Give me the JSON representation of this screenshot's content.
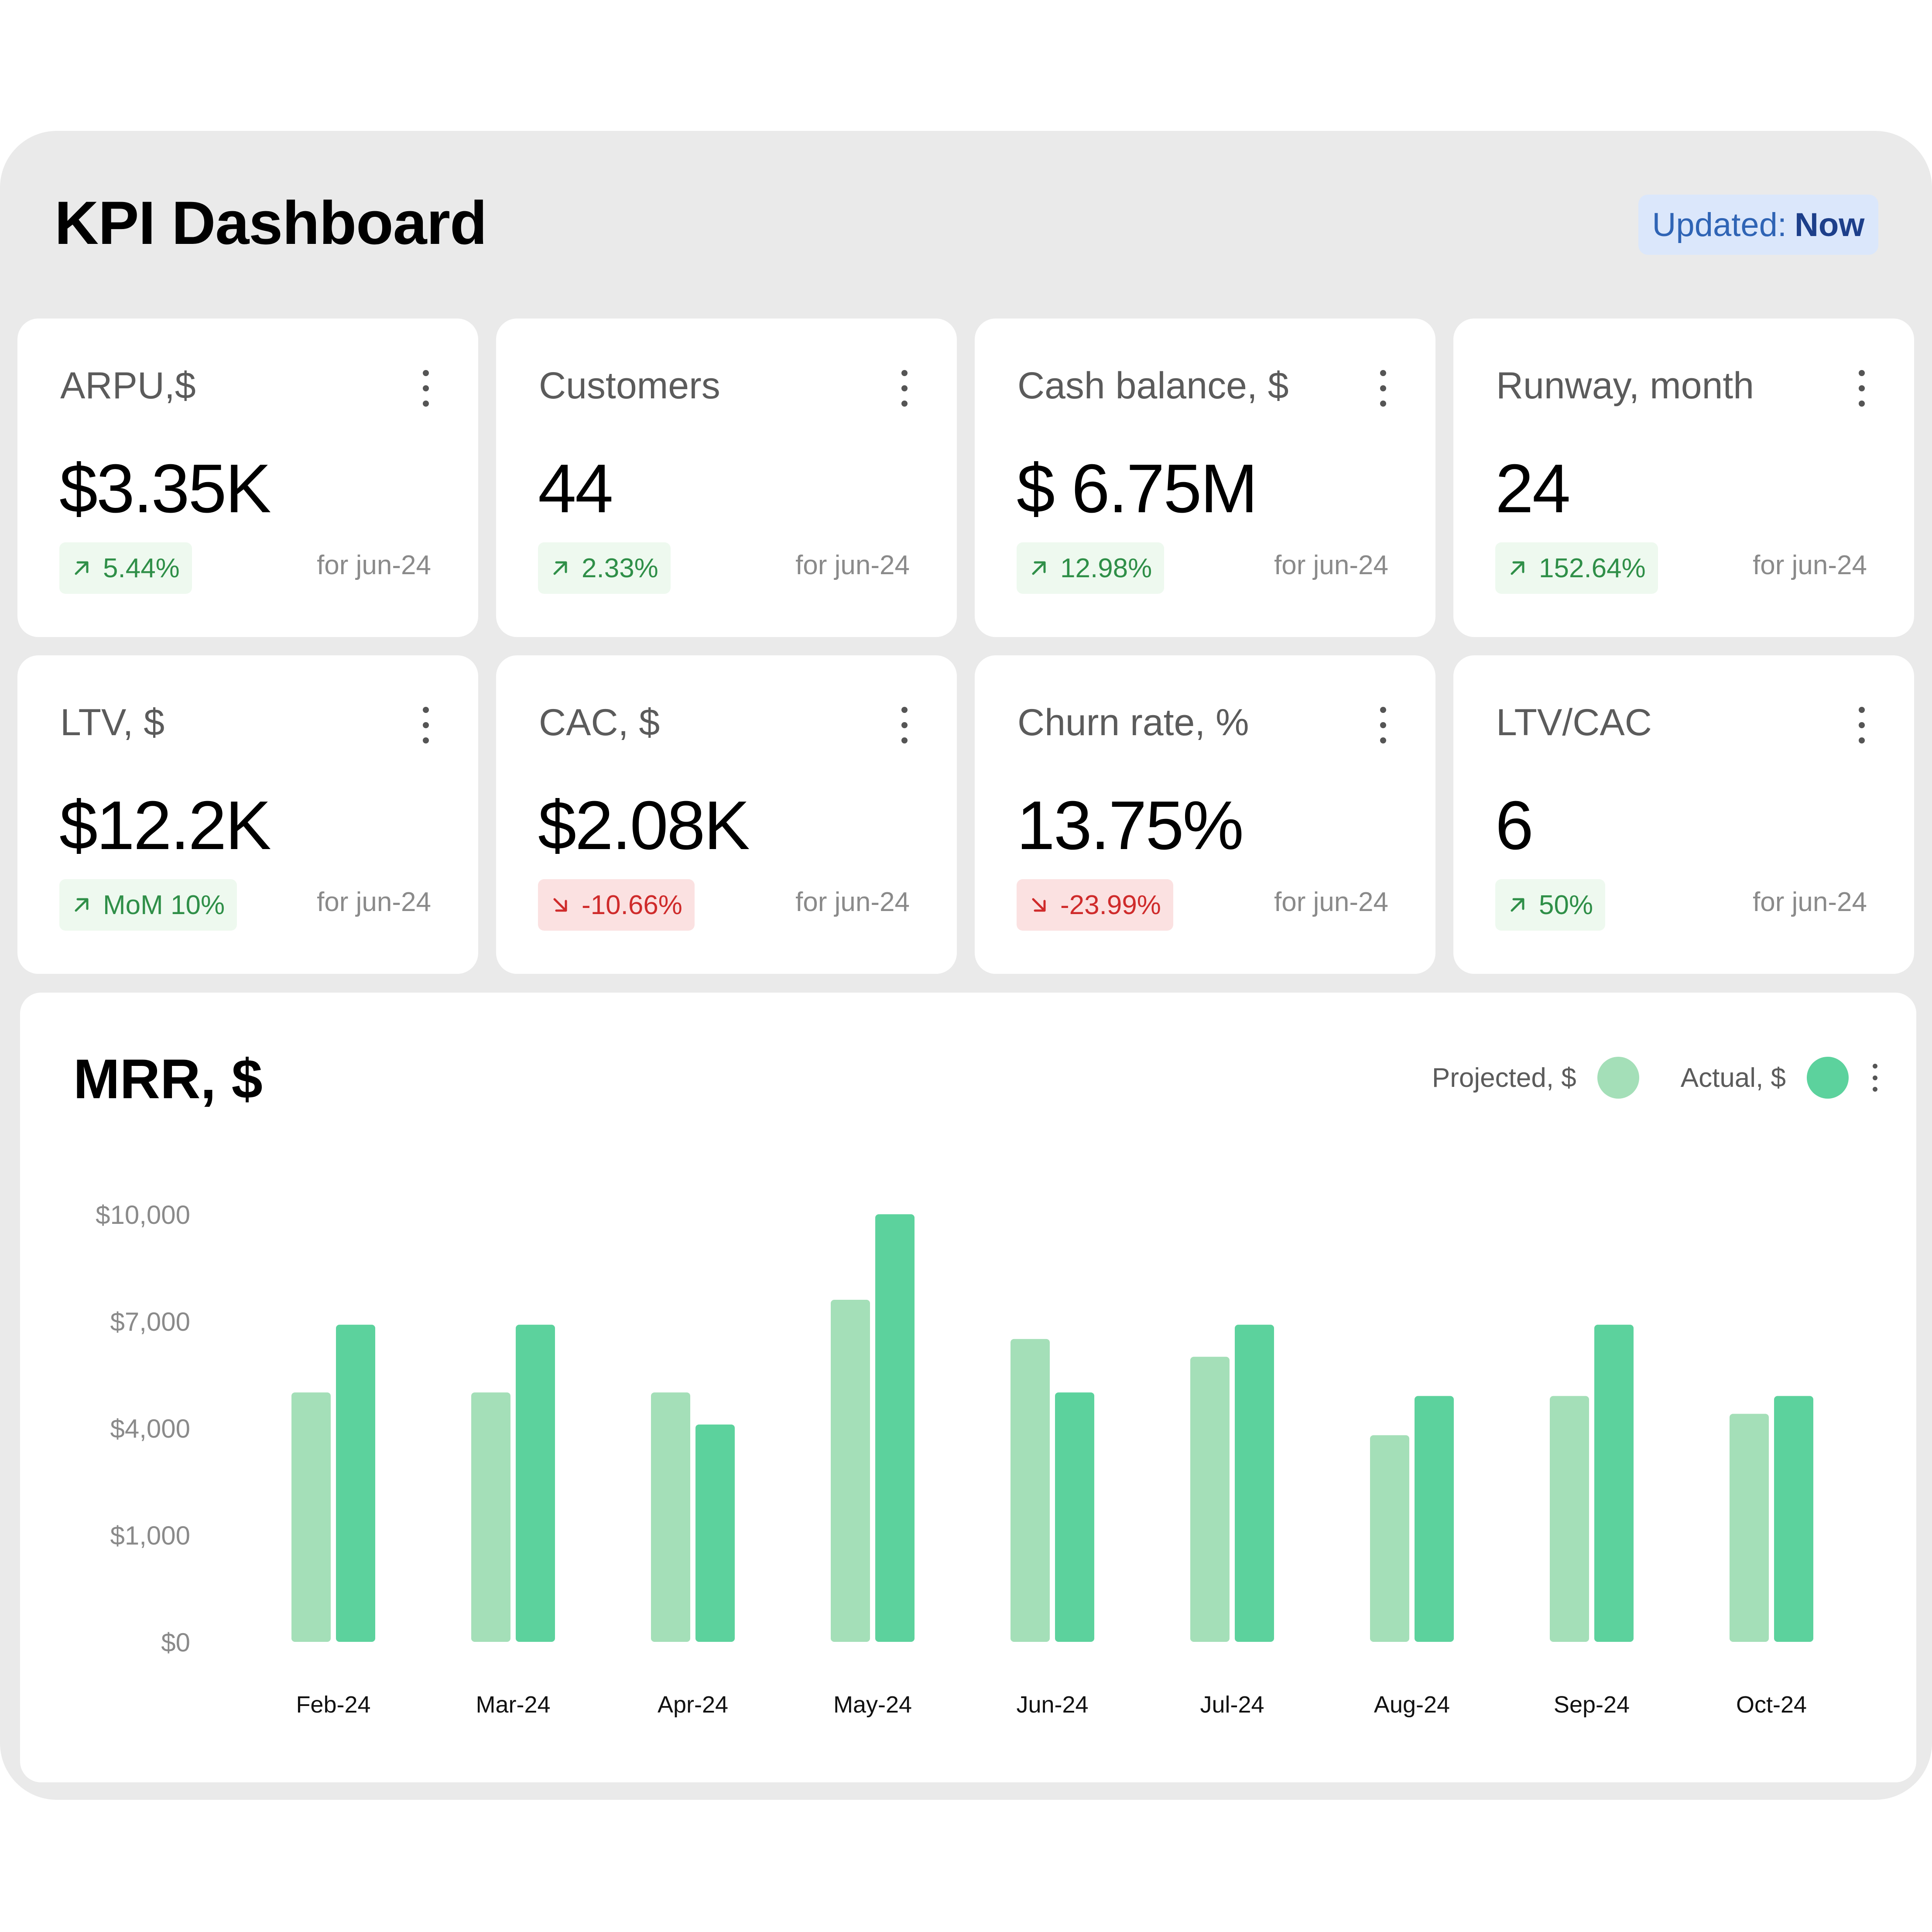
{
  "header": {
    "title": "KPI Dashboard",
    "updated_label": "Updated:",
    "updated_value": "Now"
  },
  "kpis": [
    {
      "title": "ARPU,$",
      "value": "$3.35K",
      "delta": "5.44%",
      "direction": "up",
      "period": "for jun-24"
    },
    {
      "title": "Customers",
      "value": "44",
      "delta": "2.33%",
      "direction": "up",
      "period": "for jun-24"
    },
    {
      "title": "Cash balance, $",
      "value": "$ 6.75M",
      "delta": "12.98%",
      "direction": "up",
      "period": "for jun-24"
    },
    {
      "title": "Runway, month",
      "value": "24",
      "delta": "152.64%",
      "direction": "up",
      "period": "for jun-24"
    },
    {
      "title": "LTV, $",
      "value": "$12.2K",
      "delta": "MoM 10%",
      "direction": "up",
      "period": "for jun-24"
    },
    {
      "title": "CAC, $",
      "value": "$2.08K",
      "delta": "-10.66%",
      "direction": "down",
      "period": "for jun-24"
    },
    {
      "title": "Churn rate, %",
      "value": "13.75%",
      "delta": "-23.99%",
      "direction": "down",
      "period": "for jun-24"
    },
    {
      "title": "LTV/CAC",
      "value": "6",
      "delta": "50%",
      "direction": "up",
      "period": "for jun-24"
    }
  ],
  "icons": {
    "delta_up": "arrow-up-right-icon",
    "delta_down": "arrow-down-right-icon",
    "menu": "more-vertical-icon"
  },
  "colors": {
    "projected": "#a4dfb8",
    "actual": "#5cd29d",
    "positive": "#2f8f48",
    "negative": "#cf2b2b",
    "badge_bg": "#dbe7fb"
  },
  "chart_data": {
    "type": "bar",
    "title": "MRR, $",
    "categories": [
      "Feb-24",
      "Mar-24",
      "Apr-24",
      "May-24",
      "Jun-24",
      "Jul-24",
      "Aug-24",
      "Sep-24",
      "Oct-24"
    ],
    "series": [
      {
        "name": "Projected, $",
        "values": [
          5000,
          5000,
          5000,
          7600,
          6500,
          6000,
          3800,
          4900,
          4400
        ]
      },
      {
        "name": "Actual, $",
        "values": [
          6900,
          6900,
          4100,
          10000,
          5000,
          6900,
          4900,
          6900,
          4900
        ]
      }
    ],
    "y_ticks": [
      {
        "label": "$0",
        "value": 0
      },
      {
        "label": "$1,000",
        "value": 1000
      },
      {
        "label": "$4,000",
        "value": 4000
      },
      {
        "label": "$7,000",
        "value": 7000
      },
      {
        "label": "$10,000",
        "value": 10000
      }
    ],
    "ylim": [
      0,
      10000
    ],
    "grid": false,
    "legend_position": "top-right"
  }
}
